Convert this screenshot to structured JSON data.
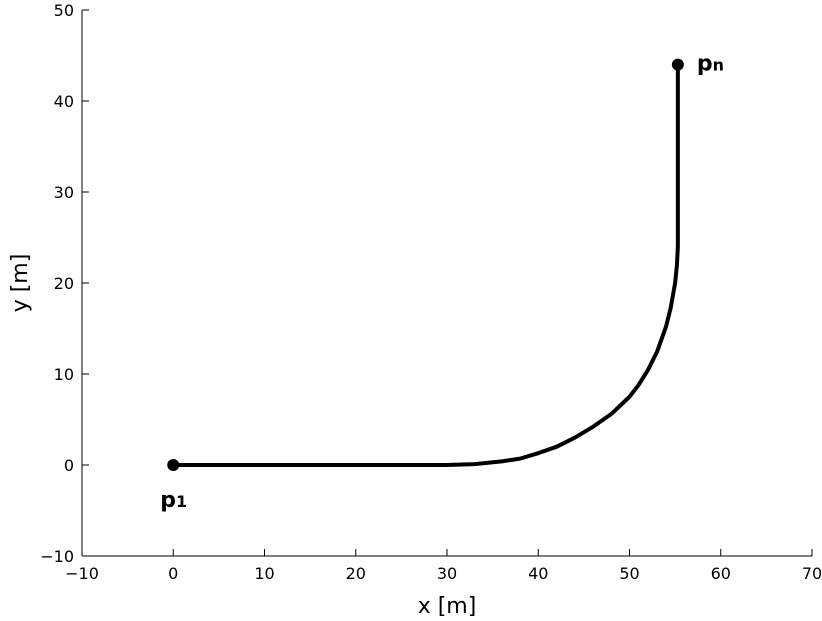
{
  "chart_data": {
    "type": "line",
    "title": "",
    "xlabel": "x [m]",
    "ylabel": "y [m]",
    "xlim": [
      -10,
      70
    ],
    "ylim": [
      -10,
      50
    ],
    "xticks": [
      -10,
      0,
      10,
      20,
      30,
      40,
      50,
      60,
      70
    ],
    "yticks": [
      -10,
      0,
      10,
      20,
      30,
      40,
      50
    ],
    "xtick_labels": [
      "−10",
      "0",
      "10",
      "20",
      "30",
      "40",
      "50",
      "60",
      "70"
    ],
    "ytick_labels": [
      "−10",
      "0",
      "10",
      "20",
      "30",
      "40",
      "50"
    ],
    "grid": false,
    "line_color": "#000000",
    "series": [
      {
        "x": [
          0,
          10,
          20,
          30,
          33,
          36,
          38,
          40,
          42,
          44,
          46,
          48,
          50,
          51,
          52,
          53,
          54,
          54.5,
          55,
          55.2,
          55.3,
          55.3,
          55.3
        ],
        "y": [
          0,
          0,
          0,
          0,
          0.1,
          0.4,
          0.7,
          1.3,
          2.0,
          3.0,
          4.2,
          5.6,
          7.5,
          8.8,
          10.4,
          12.4,
          15.2,
          17.2,
          20.0,
          22.0,
          24.0,
          35.0,
          44.0
        ]
      }
    ],
    "annotations": [
      {
        "label": "p",
        "subscript": "1",
        "x": 0,
        "y": 0
      },
      {
        "label": "p",
        "subscript": "n",
        "x": 55.3,
        "y": 44.0
      }
    ]
  }
}
